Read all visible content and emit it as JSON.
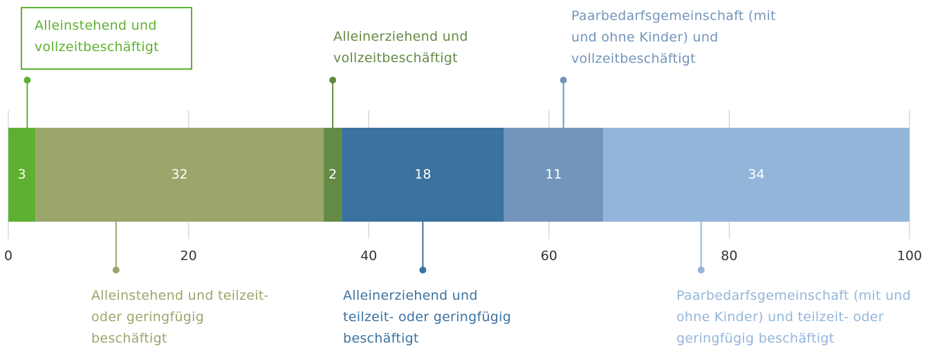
{
  "chart_data": {
    "type": "bar",
    "orientation": "horizontal",
    "stacked": true,
    "xlim": [
      0,
      100
    ],
    "xticks": [
      0,
      20,
      40,
      60,
      80,
      100
    ],
    "grid": true,
    "series": [
      {
        "name": "Alleinstehend und vollzeitbeschäftigt",
        "color": "#5eb130",
        "values": [
          3
        ]
      },
      {
        "name": "Alleinstehend und teilzeit- oder geringfügig beschäftigt",
        "color": "#9aa66b",
        "values": [
          32
        ]
      },
      {
        "name": "Alleinerziehend und vollzeitbeschäftigt",
        "color": "#648a45",
        "values": [
          2
        ]
      },
      {
        "name": "Alleinerziehend und teilzeit- oder geringfügig beschäftigt",
        "color": "#3a72a0",
        "values": [
          18
        ]
      },
      {
        "name": "Paarbedarfsgemeinschaft (mit und ohne Kinder) und vollzeitbeschäftigt",
        "color": "#7395bb",
        "values": [
          11
        ]
      },
      {
        "name": "Paarbedarfsgemeinschaft (mit und ohne Kinder) und teilzeit- oder geringfügig beschäftigt",
        "color": "#93b5da",
        "values": [
          34
        ]
      }
    ]
  }
}
